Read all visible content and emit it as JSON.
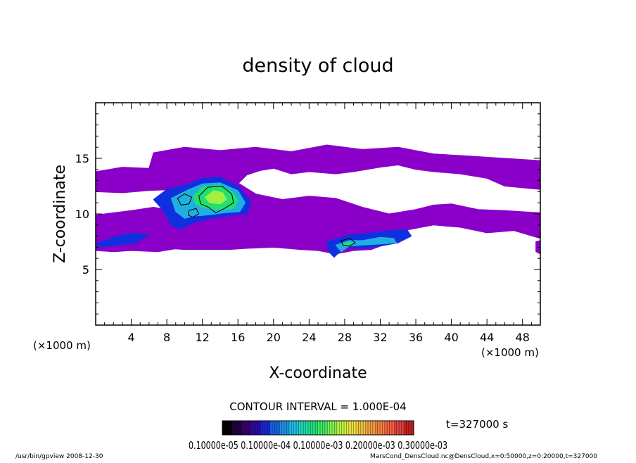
{
  "chart_data": {
    "type": "heatmap",
    "title": "density of cloud",
    "xlabel": "X-coordinate",
    "ylabel": "Z-coordinate",
    "x_unit_left": "(×1000 m)",
    "x_unit_right": "(×1000 m)",
    "xlim": [
      0,
      50
    ],
    "ylim": [
      0,
      20
    ],
    "x_ticks": [
      4,
      8,
      12,
      16,
      20,
      24,
      28,
      32,
      36,
      40,
      44,
      48
    ],
    "x_tick_labels": [
      "4",
      "8",
      "12",
      "16",
      "20",
      "24",
      "28",
      "32",
      "36",
      "40",
      "44",
      "48"
    ],
    "y_ticks": [
      5,
      10,
      15
    ],
    "y_tick_labels": [
      "5",
      "10",
      "15"
    ],
    "contour_interval": "CONTOUR INTERVAL = 1.000E-04",
    "time_label": "t=327000 s",
    "colorbar_labels_text": "0.10000e-05 0.10000e-04 0.10000e-03 0.20000e-03 0.30000e-03",
    "footer_left": "/usr/bin/gpview  2008-12-30",
    "footer_right": "MarsCond_DensCloud.nc@DensCloud,x=0:50000,z=0:20000,t=327000",
    "colors": {
      "low": "#8a00c8",
      "mid_low": "#1030e0",
      "mid": "#20b0e0",
      "high": "#20e070",
      "peak": "#9ff040"
    },
    "regions": [
      {
        "name": "upper-band",
        "level": "low",
        "points": [
          [
            0,
            13.8
          ],
          [
            3,
            14.2
          ],
          [
            6,
            14.1
          ],
          [
            6.5,
            15.5
          ],
          [
            10,
            16
          ],
          [
            14,
            15.7
          ],
          [
            18,
            16
          ],
          [
            22,
            15.6
          ],
          [
            26,
            16.2
          ],
          [
            30,
            15.8
          ],
          [
            34,
            16
          ],
          [
            38,
            15.4
          ],
          [
            42,
            15.2
          ],
          [
            46,
            15
          ],
          [
            50,
            14.8
          ],
          [
            50,
            12.2
          ],
          [
            46,
            12.5
          ],
          [
            44,
            13.2
          ],
          [
            41,
            13.6
          ],
          [
            38,
            13.8
          ],
          [
            36,
            14
          ],
          [
            34,
            14.4
          ],
          [
            32,
            14.2
          ],
          [
            29,
            13.8
          ],
          [
            27,
            13.6
          ],
          [
            24,
            13.8
          ],
          [
            22,
            13.6
          ],
          [
            20,
            14.1
          ],
          [
            18.5,
            13.9
          ],
          [
            17,
            13.5
          ],
          [
            16,
            12.7
          ],
          [
            14,
            12.5
          ],
          [
            12,
            12.4
          ],
          [
            9,
            12.2
          ],
          [
            6,
            12.1
          ],
          [
            3,
            11.9
          ],
          [
            0,
            12
          ]
        ]
      },
      {
        "name": "middle-band",
        "level": "low",
        "points": [
          [
            0,
            9.9
          ],
          [
            2,
            10.1
          ],
          [
            4,
            10.3
          ],
          [
            6.5,
            10.6
          ],
          [
            8,
            10.4
          ],
          [
            9.5,
            11.8
          ],
          [
            10.5,
            12.6
          ],
          [
            12,
            13.2
          ],
          [
            14,
            13.3
          ],
          [
            16,
            12.8
          ],
          [
            18,
            11.8
          ],
          [
            21,
            11.3
          ],
          [
            24,
            11.6
          ],
          [
            27,
            11.4
          ],
          [
            30,
            10.6
          ],
          [
            33,
            10
          ],
          [
            36,
            10.4
          ],
          [
            38,
            10.8
          ],
          [
            40,
            10.9
          ],
          [
            43,
            10.4
          ],
          [
            46,
            10.3
          ],
          [
            50,
            10.1
          ],
          [
            50,
            7.8
          ],
          [
            47,
            8.5
          ],
          [
            44,
            8.3
          ],
          [
            41,
            8.8
          ],
          [
            38,
            9
          ],
          [
            36,
            8.7
          ],
          [
            34,
            8.4
          ],
          [
            33,
            7.4
          ],
          [
            31,
            6.8
          ],
          [
            29,
            6.7
          ],
          [
            27,
            6.4
          ],
          [
            25,
            6.7
          ],
          [
            23,
            6.8
          ],
          [
            20,
            7
          ],
          [
            17,
            6.9
          ],
          [
            15,
            6.8
          ],
          [
            12,
            6.8
          ],
          [
            10,
            6.8
          ],
          [
            8,
            6.9
          ],
          [
            6,
            7.5
          ],
          [
            4,
            7.2
          ],
          [
            2,
            6.8
          ],
          [
            0,
            6.8
          ]
        ]
      },
      {
        "name": "lower-left-band",
        "level": "low",
        "points": [
          [
            0,
            7.3
          ],
          [
            2,
            7.8
          ],
          [
            5,
            8.6
          ],
          [
            8,
            8.7
          ],
          [
            11,
            8.4
          ],
          [
            12,
            7.7
          ],
          [
            10,
            7
          ],
          [
            7,
            6.6
          ],
          [
            4,
            6.7
          ],
          [
            2,
            6.6
          ],
          [
            0,
            6.7
          ]
        ]
      },
      {
        "name": "right-edge-blob",
        "level": "low",
        "points": [
          [
            49.5,
            7.5
          ],
          [
            50,
            7.6
          ],
          [
            50,
            6.4
          ],
          [
            49.5,
            6.6
          ]
        ]
      },
      {
        "name": "left-blue-strip",
        "level": "mid_low",
        "points": [
          [
            0,
            7.3
          ],
          [
            2,
            7.9
          ],
          [
            4,
            8.3
          ],
          [
            6,
            8.1
          ],
          [
            4.5,
            7.4
          ],
          [
            2.5,
            7.2
          ],
          [
            0.5,
            7
          ]
        ]
      },
      {
        "name": "main-cell-blue",
        "level": "mid_low",
        "points": [
          [
            6.5,
            11.3
          ],
          [
            8,
            12.2
          ],
          [
            10.5,
            12.7
          ],
          [
            12,
            13.2
          ],
          [
            14,
            13.3
          ],
          [
            16,
            12.5
          ],
          [
            17.5,
            11
          ],
          [
            17,
            10
          ],
          [
            15.5,
            9.9
          ],
          [
            13,
            9.6
          ],
          [
            11,
            9.2
          ],
          [
            9.5,
            8.6
          ],
          [
            8.5,
            9
          ],
          [
            7.5,
            10.4
          ]
        ]
      },
      {
        "name": "main-cell-cyan",
        "level": "mid",
        "points": [
          [
            8.5,
            11.4
          ],
          [
            10.5,
            12.2
          ],
          [
            12,
            12.7
          ],
          [
            14,
            12.8
          ],
          [
            16,
            12.1
          ],
          [
            16.8,
            11
          ],
          [
            16.2,
            10.2
          ],
          [
            14.5,
            10.1
          ],
          [
            12.5,
            9.9
          ],
          [
            11,
            9.8
          ],
          [
            10,
            9.6
          ],
          [
            9,
            10.2
          ]
        ]
      },
      {
        "name": "main-cell-green",
        "level": "high",
        "points": [
          [
            11,
            11.6
          ],
          [
            12,
            12.4
          ],
          [
            14,
            12.6
          ],
          [
            15.5,
            11.9
          ],
          [
            16,
            11.2
          ],
          [
            15.5,
            10.5
          ],
          [
            13.5,
            10.4
          ],
          [
            12,
            10.6
          ],
          [
            11.2,
            10.9
          ]
        ]
      },
      {
        "name": "main-cell-peak",
        "level": "peak",
        "points": [
          [
            12.3,
            11.5
          ],
          [
            13.3,
            12.1
          ],
          [
            14.3,
            11.9
          ],
          [
            14.7,
            11.3
          ],
          [
            14,
            10.9
          ],
          [
            12.8,
            11
          ]
        ]
      },
      {
        "name": "right-cell-blue",
        "level": "mid_low",
        "points": [
          [
            26,
            7.5
          ],
          [
            28.5,
            8.1
          ],
          [
            31,
            8.3
          ],
          [
            33,
            8.5
          ],
          [
            35,
            8.6
          ],
          [
            35.5,
            8
          ],
          [
            34,
            7.4
          ],
          [
            32,
            7.1
          ],
          [
            30,
            6.9
          ],
          [
            28,
            7
          ],
          [
            26.8,
            6.1
          ],
          [
            26.2,
            6.6
          ]
        ]
      },
      {
        "name": "right-cell-cyan",
        "level": "mid",
        "points": [
          [
            27,
            7.2
          ],
          [
            28.5,
            7.6
          ],
          [
            30,
            7.6
          ],
          [
            32,
            7.9
          ],
          [
            33.5,
            7.8
          ],
          [
            33.8,
            7.4
          ],
          [
            32,
            7.3
          ],
          [
            30,
            7.2
          ],
          [
            28.5,
            7.1
          ],
          [
            27.6,
            6.6
          ]
        ]
      },
      {
        "name": "right-cell-green",
        "level": "high",
        "points": [
          [
            27.8,
            7.3
          ],
          [
            28.5,
            7.5
          ],
          [
            29,
            7.3
          ],
          [
            28.4,
            7.05
          ]
        ]
      }
    ],
    "contour_lines": [
      {
        "name": "left-lobe-contour",
        "points": [
          [
            9.2,
            11.4
          ],
          [
            10,
            11.8
          ],
          [
            10.8,
            11.5
          ],
          [
            10.5,
            10.9
          ],
          [
            9.6,
            10.8
          ]
        ]
      },
      {
        "name": "center-lower-contour",
        "points": [
          [
            10.5,
            10.3
          ],
          [
            11.3,
            10.5
          ],
          [
            11.6,
            10
          ],
          [
            10.9,
            9.7
          ],
          [
            10.4,
            9.9
          ]
        ]
      },
      {
        "name": "main-peak-contour",
        "points": [
          [
            11.6,
            11.6
          ],
          [
            12.6,
            12.4
          ],
          [
            14.2,
            12.5
          ],
          [
            15.3,
            11.8
          ],
          [
            15.5,
            11
          ],
          [
            14.5,
            10.5
          ],
          [
            13.5,
            10.1
          ],
          [
            12.7,
            10.6
          ],
          [
            11.8,
            10.9
          ]
        ]
      },
      {
        "name": "right-cell-contour",
        "points": [
          [
            27.6,
            7.6
          ],
          [
            28.6,
            7.8
          ],
          [
            29.2,
            7.4
          ],
          [
            28.5,
            7.1
          ],
          [
            27.8,
            7.2
          ]
        ]
      }
    ],
    "colorbar_colors": [
      "#000000",
      "#20003a",
      "#3a006a",
      "#2a0aa0",
      "#1828d0",
      "#1860e0",
      "#2090e0",
      "#20b8e0",
      "#20d8b0",
      "#20e080",
      "#40e860",
      "#80f050",
      "#c0f040",
      "#e8e040",
      "#f0c040",
      "#f0a040",
      "#f08040",
      "#f06040",
      "#e04040",
      "#c02020"
    ]
  }
}
